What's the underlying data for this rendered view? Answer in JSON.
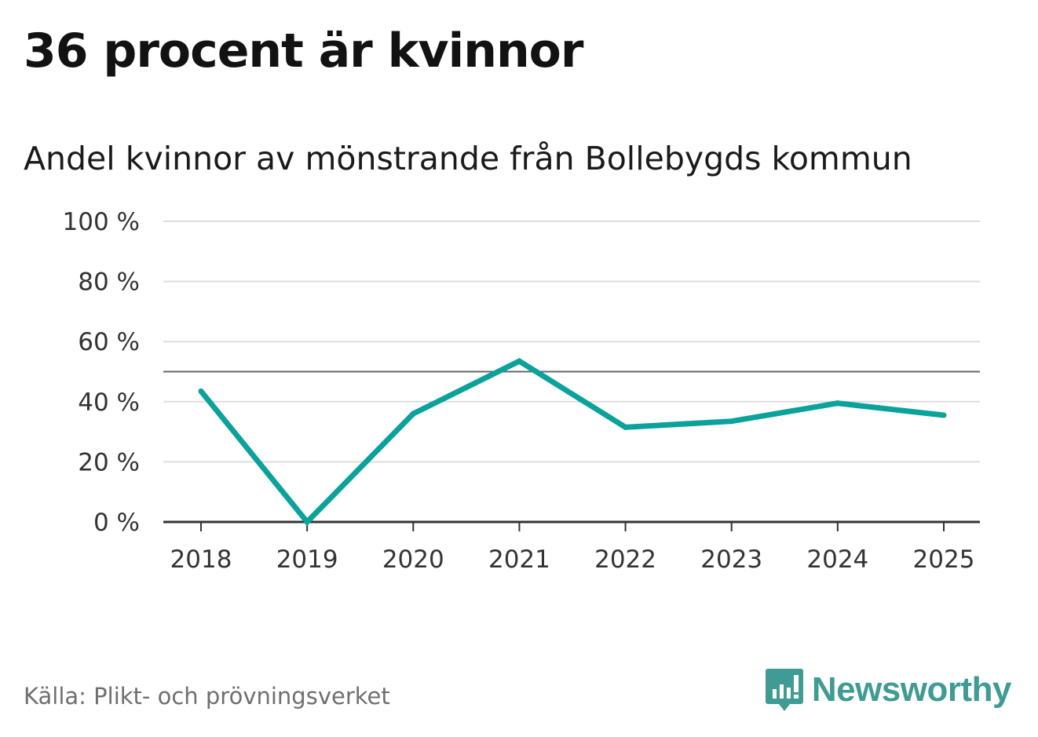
{
  "header": {
    "title": "36 procent är kvinnor"
  },
  "footer": {
    "source": "Källa: Plikt- och prövningsverket",
    "brand": "Newsworthy",
    "brand_icon": "newsworthy-logo-icon"
  },
  "colors": {
    "line": "#0aa29a",
    "grid": "#dddddd",
    "reference": "#666666",
    "axis": "#333333"
  },
  "chart_data": {
    "type": "line",
    "title": "Andel kvinnor av mönstrande från Bollebygds kommun",
    "xlabel": "",
    "ylabel": "",
    "categories": [
      "2018",
      "2019",
      "2020",
      "2021",
      "2022",
      "2023",
      "2024",
      "2025"
    ],
    "series": [
      {
        "name": "Andel kvinnor",
        "values": [
          43.5,
          0,
          36,
          53.5,
          31.5,
          33.5,
          39.5,
          35.5
        ]
      }
    ],
    "ylim": [
      0,
      100
    ],
    "yticks": [
      0,
      20,
      40,
      60,
      80,
      100
    ],
    "ytick_labels": [
      "0 %",
      "20 %",
      "40 %",
      "60 %",
      "80 %",
      "100 %"
    ],
    "reference_line": 50,
    "grid": true,
    "legend": "none"
  }
}
